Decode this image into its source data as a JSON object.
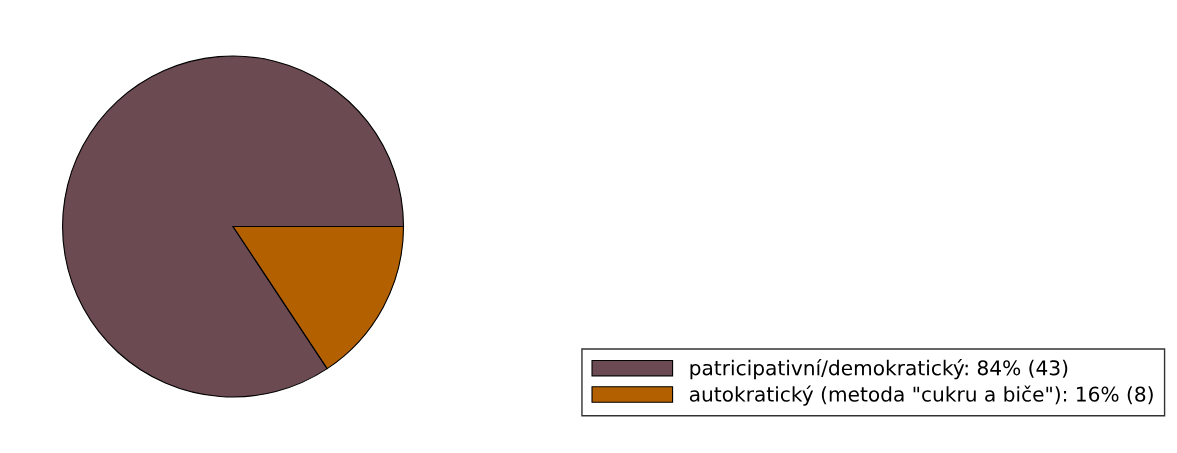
{
  "chart_data": {
    "type": "pie",
    "categories": [
      "patricipativní/demokratický: 84% (43)",
      "autokratický (metoda \"cukru a biče\"): 16% (8)"
    ],
    "values": [
      43,
      8
    ],
    "colors": [
      "#6b4a51",
      "#b36000"
    ],
    "legend": "bottom right"
  }
}
